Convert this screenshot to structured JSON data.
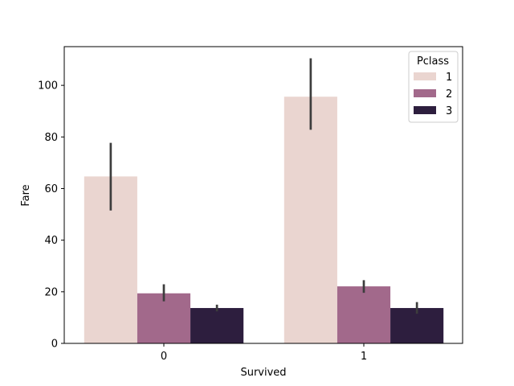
{
  "chart_data": {
    "type": "bar",
    "title": "",
    "xlabel": "Survived",
    "ylabel": "Fare",
    "categories": [
      "0",
      "1"
    ],
    "ylim": [
      0,
      115
    ],
    "yticks": [
      0,
      20,
      40,
      60,
      80,
      100
    ],
    "grid": false,
    "legend": {
      "title": "Pclass",
      "placement": "top-right"
    },
    "series": [
      {
        "name": "1",
        "color": "#ead5d0",
        "values": [
          64.7,
          95.6
        ],
        "error_low": [
          51.5,
          82.8
        ],
        "error_high": [
          77.7,
          110.5
        ]
      },
      {
        "name": "2",
        "color": "#a2698b",
        "values": [
          19.4,
          22.1
        ],
        "error_low": [
          16.3,
          19.6
        ],
        "error_high": [
          22.9,
          24.5
        ]
      },
      {
        "name": "3",
        "color": "#2d1e3e",
        "values": [
          13.7,
          13.7
        ],
        "error_low": [
          12.4,
          11.5
        ],
        "error_high": [
          15.0,
          16.0
        ]
      }
    ],
    "error_bar_color": "#3d3d3d"
  }
}
